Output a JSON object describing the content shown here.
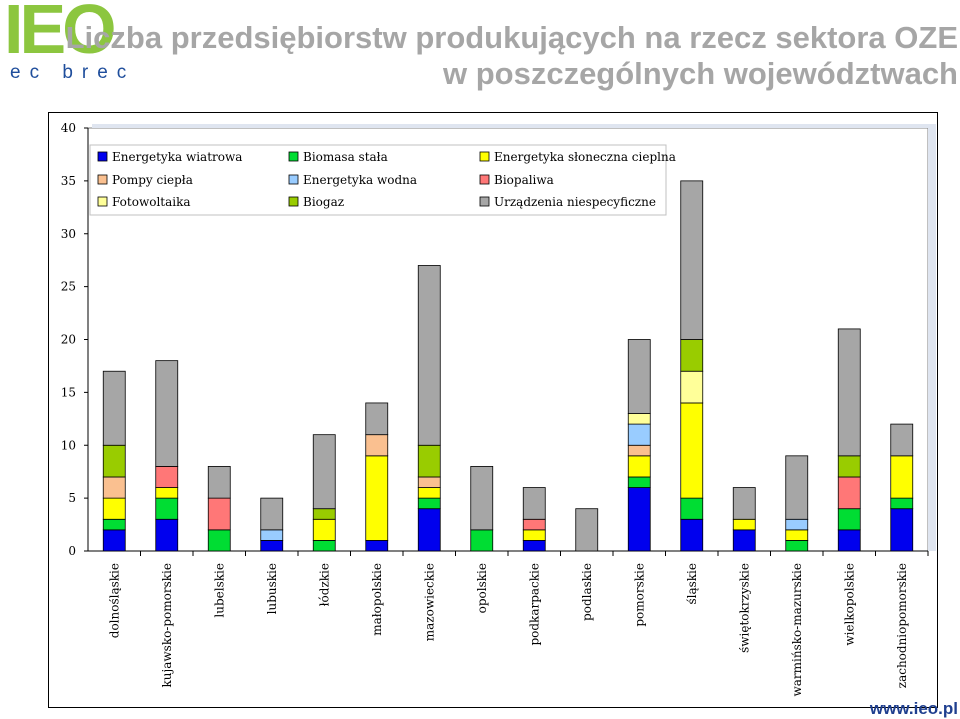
{
  "logo": {
    "mark": "IEO",
    "tagline": "ec brec"
  },
  "title": {
    "line1": "Liczba przedsiębiorstw produkujących na rzecz sektora OZE",
    "line2": "w poszczególnych województwach"
  },
  "footer": {
    "url": "www.ieo.pl"
  },
  "chart_data": {
    "type": "bar",
    "stacked": true,
    "title": "Liczba przedsiębiorstw produkujących na rzecz sektora OZE w poszczególnych województwach",
    "xlabel": "",
    "ylabel": "",
    "ylim": [
      0,
      40
    ],
    "yticks": [
      0,
      5,
      10,
      15,
      20,
      25,
      30,
      35,
      40
    ],
    "grid": false,
    "legend_position": "top-left",
    "categories": [
      "dolnośląskie",
      "kujawsko-pomorskie",
      "lubelskie",
      "lubuskie",
      "łódzkie",
      "małopolskie",
      "mazowieckie",
      "opolskie",
      "podkarpackie",
      "podlaskie",
      "pomorskie",
      "śląskie",
      "świętokrzyskie",
      "warmińsko-mazurskie",
      "wielkopolskie",
      "zachodniopomorskie"
    ],
    "series": [
      {
        "name": "Energetyka wiatrowa",
        "color": "#0000ee",
        "values": [
          2,
          3,
          0,
          1,
          0,
          1,
          4,
          0,
          1,
          0,
          6,
          3,
          2,
          0,
          2,
          4
        ]
      },
      {
        "name": "Biomasa stała",
        "color": "#00dd33",
        "values": [
          1,
          2,
          2,
          0,
          1,
          0,
          1,
          2,
          0,
          0,
          1,
          2,
          0,
          1,
          2,
          1
        ]
      },
      {
        "name": "Energetyka słoneczna cieplna",
        "color": "#ffff00",
        "values": [
          2,
          1,
          0,
          0,
          2,
          8,
          1,
          0,
          1,
          0,
          2,
          9,
          1,
          1,
          0,
          4
        ]
      },
      {
        "name": "Pompy ciepła",
        "color": "#fac090",
        "values": [
          2,
          0,
          0,
          0,
          0,
          2,
          1,
          0,
          0,
          0,
          1,
          0,
          0,
          0,
          0,
          0
        ]
      },
      {
        "name": "Energetyka wodna",
        "color": "#99ccff",
        "values": [
          0,
          0,
          0,
          1,
          0,
          0,
          0,
          0,
          0,
          0,
          2,
          0,
          0,
          1,
          0,
          0
        ]
      },
      {
        "name": "Biopaliwa",
        "color": "#ff7777",
        "values": [
          0,
          2,
          3,
          0,
          0,
          0,
          0,
          0,
          1,
          0,
          0,
          0,
          0,
          0,
          3,
          0
        ]
      },
      {
        "name": "Fotowoltaika",
        "color": "#ffff99",
        "values": [
          0,
          0,
          0,
          0,
          0,
          0,
          0,
          0,
          0,
          0,
          1,
          3,
          0,
          0,
          0,
          0
        ]
      },
      {
        "name": "Biogaz",
        "color": "#99cc00",
        "values": [
          3,
          0,
          0,
          0,
          1,
          0,
          3,
          0,
          0,
          0,
          0,
          3,
          0,
          0,
          2,
          0
        ]
      },
      {
        "name": "Urządzenia niespecyficzne",
        "color": "#a6a6a6",
        "values": [
          7,
          10,
          3,
          3,
          7,
          3,
          17,
          6,
          3,
          4,
          7,
          15,
          3,
          6,
          12,
          3
        ]
      }
    ]
  }
}
